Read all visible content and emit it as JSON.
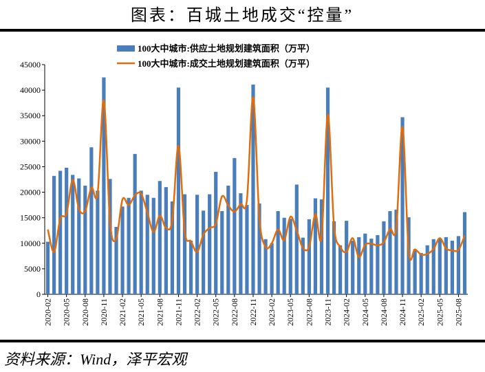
{
  "chart_data": {
    "type": "bar-line",
    "title": "图表：百城土地成交“控量”",
    "source": "资料来源：Wind，泽平宏观",
    "categories": [
      "2020-02",
      null,
      null,
      "2020-05",
      null,
      null,
      "2020-08",
      null,
      null,
      "2020-11",
      null,
      null,
      "2021-02",
      null,
      null,
      "2021-05",
      null,
      null,
      "2021-08",
      null,
      null,
      "2021-11",
      null,
      null,
      "2022-02",
      null,
      null,
      "2022-05",
      null,
      null,
      "2022-08",
      null,
      null,
      "2022-11",
      null,
      null,
      "2023-02",
      null,
      null,
      "2023-05",
      null,
      null,
      "2023-08",
      null,
      null,
      "2023-11",
      null,
      null,
      "2024-02",
      null,
      null,
      "2024-05",
      null,
      null,
      "2024-08",
      null,
      null,
      "2024-11",
      null,
      null,
      "2025-02",
      null,
      null,
      "2025-05",
      null,
      null,
      "2025-08",
      null
    ],
    "series": [
      {
        "name": "100大中城市:供应土地规划建筑面积（万平）",
        "type": "bar",
        "color": "#4a7ebb",
        "values": [
          10300,
          23200,
          24200,
          24800,
          23400,
          22700,
          21300,
          28800,
          20300,
          42500,
          22600,
          13200,
          17200,
          18900,
          27500,
          20300,
          19500,
          18900,
          22200,
          21000,
          18200,
          40500,
          19600,
          10500,
          19500,
          16400,
          19600,
          24000,
          16300,
          21300,
          26700,
          19800,
          17500,
          41100,
          17800,
          10800,
          10000,
          16300,
          15000,
          14800,
          21500,
          11100,
          14700,
          18800,
          18600,
          40500,
          14300,
          9600,
          14400,
          10500,
          11200,
          11900,
          10900,
          11600,
          14300,
          16300,
          16600,
          34700,
          15100,
          8800,
          8100,
          9600,
          10800,
          11000,
          11200,
          10500,
          11400,
          16100
        ]
      },
      {
        "name": "100大中城市:成交土地规划建筑面积（万平）",
        "type": "line",
        "color": "#e36c0a",
        "values": [
          12700,
          8300,
          14800,
          15800,
          22400,
          16700,
          16300,
          20900,
          19700,
          38000,
          14100,
          10900,
          18600,
          17500,
          19400,
          19700,
          16000,
          12200,
          15400,
          13000,
          14500,
          29100,
          12300,
          10400,
          8300,
          11700,
          13000,
          13800,
          19200,
          17400,
          16200,
          17700,
          18500,
          38600,
          15000,
          9300,
          10000,
          12700,
          10600,
          15200,
          12500,
          9100,
          9300,
          15700,
          11200,
          35200,
          13400,
          9300,
          8300,
          11000,
          7300,
          9700,
          9900,
          9600,
          10200,
          12800,
          13000,
          32800,
          8400,
          8800,
          7800,
          7900,
          8900,
          11000,
          9000,
          8600,
          8700,
          11500
        ]
      }
    ],
    "ylim": [
      0,
      45000
    ],
    "yticks": [
      0,
      5000,
      10000,
      15000,
      20000,
      25000,
      30000,
      35000,
      40000,
      45000
    ]
  }
}
